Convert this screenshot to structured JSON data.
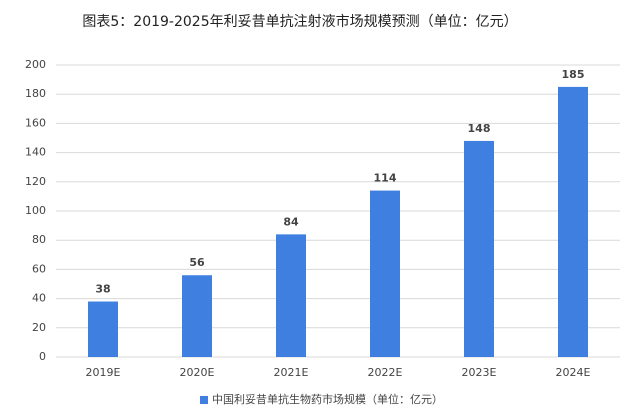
{
  "chart_data": {
    "type": "bar",
    "title": "图表5：2019-2025年利妥昔单抗注射液市场规模预测（单位：亿元）",
    "categories": [
      "2019E",
      "2020E",
      "2021E",
      "2022E",
      "2023E",
      "2024E"
    ],
    "series": [
      {
        "name": "中国利妥昔单抗生物药市场规模（单位：亿元）",
        "color": "#3f7fe0",
        "values": [
          38,
          56,
          84,
          114,
          148,
          185
        ]
      }
    ],
    "ylim": [
      0,
      200
    ],
    "yticks": [
      0,
      20,
      40,
      60,
      80,
      100,
      120,
      140,
      160,
      180,
      200
    ],
    "grid": true,
    "legend": "bottom"
  }
}
